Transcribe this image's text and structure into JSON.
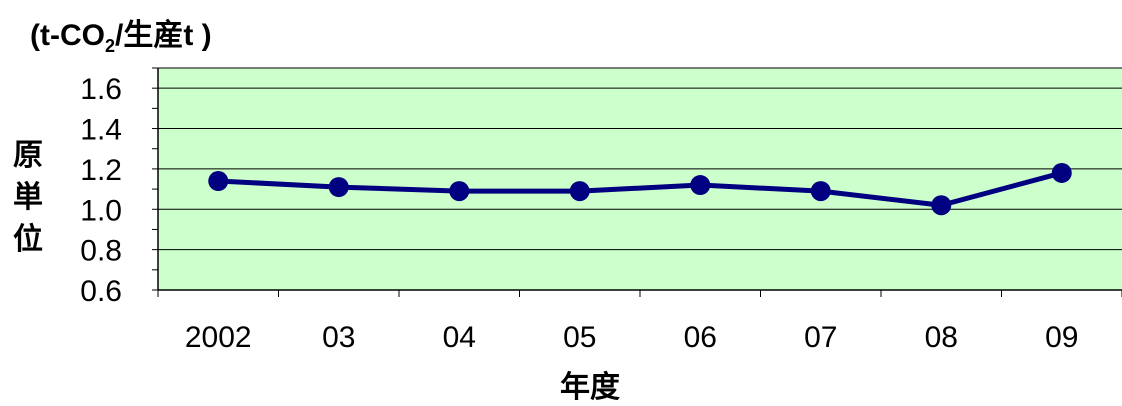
{
  "chart_data": {
    "type": "line",
    "unit_label": {
      "prefix": "(t-CO",
      "subscript": "2",
      "suffix": "/生産t )"
    },
    "ylabel_chars": [
      "原",
      "単",
      "位"
    ],
    "xlabel": "年度",
    "categories": [
      "2002",
      "03",
      "04",
      "05",
      "06",
      "07",
      "08",
      "09"
    ],
    "series": [
      {
        "values": [
          1.14,
          1.11,
          1.09,
          1.09,
          1.12,
          1.09,
          1.02,
          1.18
        ]
      }
    ],
    "ylim": [
      0.6,
      1.7
    ],
    "yticks": [
      "0.6",
      "0.8",
      "1.0",
      "1.2",
      "1.4",
      "1.6"
    ],
    "grid": true,
    "colors": {
      "plot_background": "#ccffcc",
      "line": "#000080",
      "grid": "#000000"
    }
  }
}
